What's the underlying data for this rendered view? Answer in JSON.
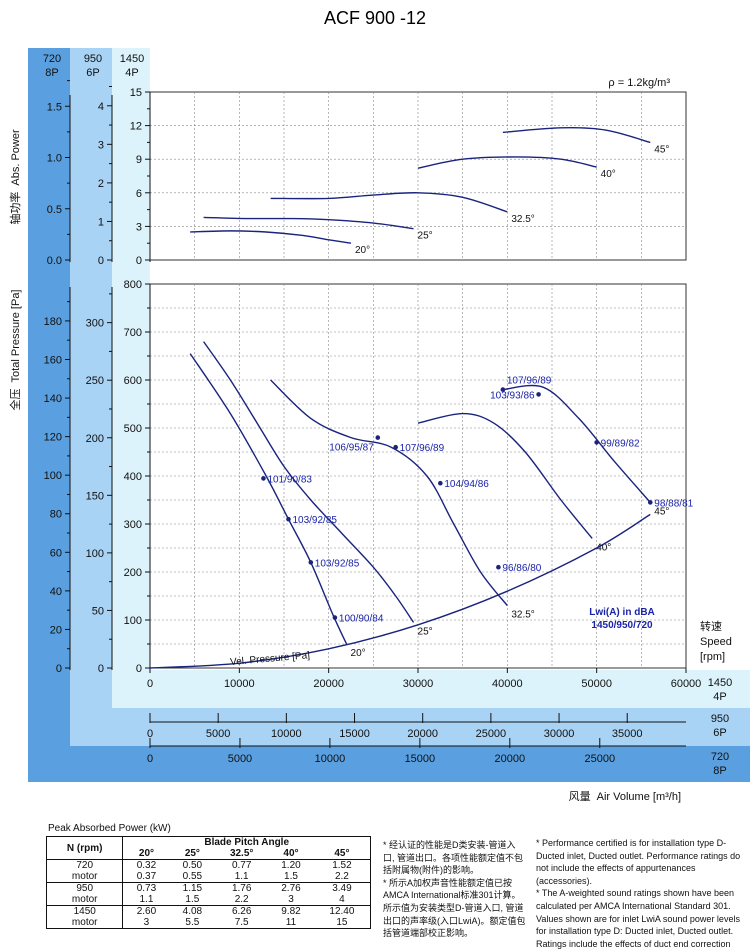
{
  "title": "ACF 900 -12",
  "density_note": "ρ = 1.2kg/m³",
  "speed_columns": [
    {
      "rpm": "720",
      "poles": "8P"
    },
    {
      "rpm": "950",
      "poles": "6P"
    },
    {
      "rpm": "1450",
      "poles": "4P"
    }
  ],
  "power_axis": {
    "label_cn": "轴功率",
    "label_en": "Abs. Power",
    "ticks_720": [
      "0.0",
      "0.5",
      "1.0",
      "1.5"
    ],
    "ticks_950": [
      "0",
      "1",
      "2",
      "3",
      "4"
    ],
    "ticks_1450": [
      "0",
      "3",
      "6",
      "9",
      "12",
      "15"
    ]
  },
  "pressure_axis": {
    "label_cn": "全压",
    "label_en": "Total Pressure [Pa]",
    "ticks_720": [
      "0",
      "20",
      "40",
      "60",
      "80",
      "100",
      "120",
      "140",
      "160",
      "180"
    ],
    "ticks_950": [
      "0",
      "50",
      "100",
      "150",
      "200",
      "250",
      "300"
    ],
    "ticks_1450": [
      "0",
      "100",
      "200",
      "300",
      "400",
      "500",
      "600",
      "700",
      "800"
    ]
  },
  "volume_axis": {
    "label_cn": "风量",
    "label_en": "Air Volume [m³/h]",
    "ticks_1450": [
      "0",
      "10000",
      "20000",
      "30000",
      "40000",
      "50000",
      "60000"
    ],
    "ticks_950": [
      "0",
      "5000",
      "10000",
      "15000",
      "20000",
      "25000",
      "30000",
      "35000"
    ],
    "ticks_720": [
      "0",
      "5000",
      "10000",
      "15000",
      "20000",
      "25000"
    ]
  },
  "speed_label": {
    "cn": "转速",
    "en": "Speed",
    "unit": "[rpm]"
  },
  "lwi_label": {
    "line1": "Lwi(A) in dBA",
    "line2": "1450/950/720"
  },
  "vel_pressure_label": "Vel. Pressure [Pa]",
  "chart_data": {
    "type": "line",
    "x_unit": "m³/h",
    "power_chart": {
      "ylabel": "Abs. Power",
      "ylim": [
        0,
        15
      ],
      "xlim": [
        0,
        60000
      ],
      "series": [
        {
          "name": "20°",
          "points": [
            [
              4500,
              2.5
            ],
            [
              9000,
              2.6
            ],
            [
              13000,
              2.5
            ],
            [
              17000,
              2.2
            ],
            [
              20000,
              1.8
            ],
            [
              22500,
              1.5
            ]
          ]
        },
        {
          "name": "25°",
          "points": [
            [
              6000,
              3.8
            ],
            [
              11000,
              3.7
            ],
            [
              16000,
              3.7
            ],
            [
              20000,
              3.6
            ],
            [
              25000,
              3.3
            ],
            [
              29500,
              2.8
            ]
          ]
        },
        {
          "name": "32.5°",
          "points": [
            [
              13500,
              5.5
            ],
            [
              20000,
              5.5
            ],
            [
              25000,
              5.8
            ],
            [
              30000,
              6.0
            ],
            [
              35000,
              5.6
            ],
            [
              40000,
              4.3
            ]
          ]
        },
        {
          "name": "40°",
          "points": [
            [
              30000,
              8.2
            ],
            [
              35000,
              9.0
            ],
            [
              41000,
              9.2
            ],
            [
              46000,
              9.0
            ],
            [
              50000,
              8.3
            ]
          ]
        },
        {
          "name": "45°",
          "points": [
            [
              39500,
              11.4
            ],
            [
              46000,
              11.8
            ],
            [
              51000,
              11.6
            ],
            [
              56000,
              10.5
            ]
          ]
        }
      ]
    },
    "pressure_chart": {
      "ylabel": "Total Pressure [Pa]",
      "ylim": [
        0,
        800
      ],
      "xlim": [
        0,
        60000
      ],
      "series": [
        {
          "name": "20°",
          "points": [
            [
              4500,
              655
            ],
            [
              9000,
              530
            ],
            [
              13000,
              400
            ],
            [
              15500,
              310
            ],
            [
              18000,
              220
            ],
            [
              20500,
              110
            ],
            [
              22000,
              50
            ]
          ]
        },
        {
          "name": "25°",
          "points": [
            [
              6000,
              680
            ],
            [
              9000,
              600
            ],
            [
              12000,
              510
            ],
            [
              15000,
              420
            ],
            [
              18000,
              350
            ],
            [
              21500,
              280
            ],
            [
              25000,
              210
            ],
            [
              27500,
              150
            ],
            [
              29500,
              95
            ]
          ]
        },
        {
          "name": "32.5°",
          "points": [
            [
              13500,
              600
            ],
            [
              18000,
              520
            ],
            [
              22500,
              480
            ],
            [
              27000,
              460
            ],
            [
              31000,
              400
            ],
            [
              34000,
              300
            ],
            [
              37000,
              200
            ],
            [
              40000,
              130
            ]
          ]
        },
        {
          "name": "40°",
          "points": [
            [
              30000,
              510
            ],
            [
              35000,
              530
            ],
            [
              38500,
              510
            ],
            [
              42000,
              450
            ],
            [
              46000,
              350
            ],
            [
              49500,
              270
            ]
          ]
        },
        {
          "name": "45°",
          "points": [
            [
              39500,
              580
            ],
            [
              44000,
              585
            ],
            [
              48000,
              520
            ],
            [
              52000,
              430
            ],
            [
              56000,
              345
            ]
          ]
        }
      ],
      "velocity_pressure": {
        "name": "Vel. Pressure [Pa]",
        "points": [
          [
            0,
            0
          ],
          [
            10000,
            10
          ],
          [
            20000,
            40
          ],
          [
            30000,
            90
          ],
          [
            40000,
            160
          ],
          [
            50000,
            250
          ],
          [
            56000,
            320
          ]
        ]
      },
      "sound_labels": [
        {
          "text": "101/90/83",
          "x": 12700,
          "y": 395
        },
        {
          "text": "103/92/85",
          "x": 15500,
          "y": 310
        },
        {
          "text": "103/92/85",
          "x": 18000,
          "y": 220
        },
        {
          "text": "100/90/84",
          "x": 20700,
          "y": 105
        },
        {
          "text": "106/95/87",
          "x": 25500,
          "y": 480
        },
        {
          "text": "107/96/89",
          "x": 27500,
          "y": 460
        },
        {
          "text": "104/94/86",
          "x": 32500,
          "y": 385
        },
        {
          "text": "96/86/80",
          "x": 39000,
          "y": 210
        },
        {
          "text": "107/96/89",
          "x": 39500,
          "y": 580
        },
        {
          "text": "103/93/86",
          "x": 43500,
          "y": 570
        },
        {
          "text": "99/89/82",
          "x": 50000,
          "y": 470
        },
        {
          "text": "98/88/81",
          "x": 56000,
          "y": 345
        }
      ]
    }
  },
  "power_table": {
    "title": "Peak Absorbed Power (kW)",
    "header_n": "N (rpm)",
    "header_group": "Blade Pitch Angle",
    "angles": [
      "20°",
      "25°",
      "32.5°",
      "40°",
      "45°"
    ],
    "rows": [
      {
        "n": "720",
        "values": [
          "0.32",
          "0.50",
          "0.77",
          "1.20",
          "1.52"
        ]
      },
      {
        "n": "motor",
        "values": [
          "0.37",
          "0.55",
          "1.1",
          "1.5",
          "2.2"
        ]
      },
      {
        "n": "950",
        "values": [
          "0.73",
          "1.15",
          "1.76",
          "2.76",
          "3.49"
        ]
      },
      {
        "n": "motor",
        "values": [
          "1.1",
          "1.5",
          "2.2",
          "3",
          "4"
        ]
      },
      {
        "n": "1450",
        "values": [
          "2.60",
          "4.08",
          "6.26",
          "9.82",
          "12.40"
        ]
      },
      {
        "n": "motor",
        "values": [
          "3",
          "5.5",
          "7.5",
          "11",
          "15"
        ]
      }
    ]
  },
  "notes_cn": [
    "* 经认证的性能是D类安装-管道入口, 管道出口。各项性能额定值不包括附属物(附件)的影响。",
    "* 所示A加权声音性能额定值已按AMCA International标准301计算。所示值为安装类型D-管道入口, 管道出口的声率级(入口LwiA)。额定值包括管道端部校正影响。"
  ],
  "notes_en": [
    "* Performance certified is for installation type D-Ducted inlet, Ducted outlet. Performance ratings do not include the effects of appurtenances (accessories).",
    "* The A-weighted sound ratings shown have been calculated per AMCA International Standard 301. Values shown are for inlet LwiA sound power levels for installation type D: Ducted inlet, Ducted outlet. Ratings include the effects of duct end correction"
  ],
  "colors": {
    "band_720": "#5aa0e0",
    "band_950": "#a9d3f5",
    "band_1450": "#dcf3fb",
    "curve": "#1a237e",
    "accent_text": "#1a23a8"
  }
}
